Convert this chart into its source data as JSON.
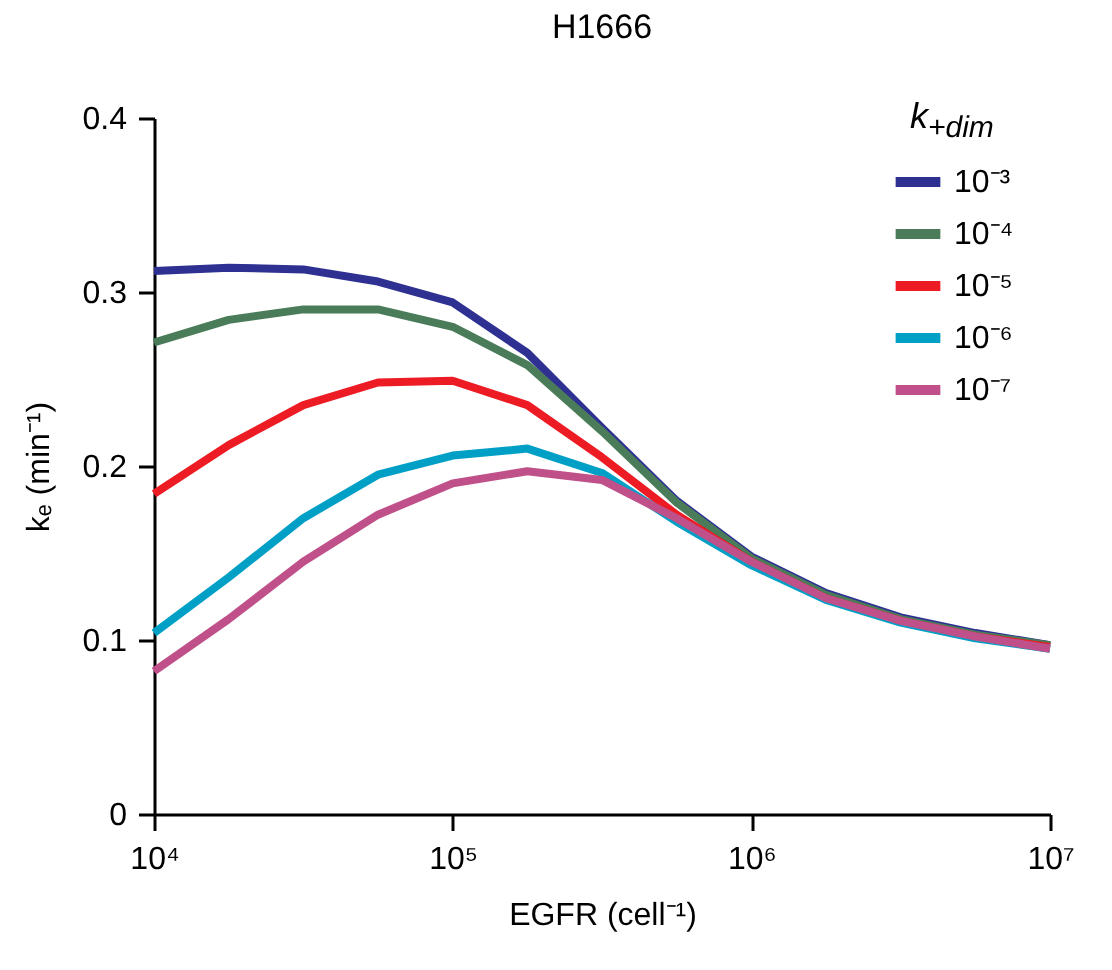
{
  "chart_data": {
    "type": "line",
    "title": "H1666",
    "xlabel": "EGFR (cell⁻¹)",
    "ylabel": "kₑ (min⁻¹)",
    "legend_title": "k$_{+dim}$",
    "x": [
      10000,
      17783,
      31623,
      56234,
      100000,
      177828,
      316228,
      562341,
      1000000,
      1778279,
      3162278,
      5623413,
      10000000
    ],
    "series": [
      {
        "name": "10⁻³",
        "color": "#2e3192",
        "values": [
          0.312,
          0.314,
          0.313,
          0.306,
          0.294,
          0.265,
          0.222,
          0.18,
          0.148,
          0.127,
          0.113,
          0.104,
          0.097
        ]
      },
      {
        "name": "10⁻⁴",
        "color": "#4a7c59",
        "values": [
          0.271,
          0.284,
          0.29,
          0.29,
          0.28,
          0.258,
          0.22,
          0.179,
          0.147,
          0.126,
          0.112,
          0.103,
          0.097
        ]
      },
      {
        "name": "10⁻⁵",
        "color": "#ed1c24",
        "values": [
          0.184,
          0.212,
          0.235,
          0.248,
          0.249,
          0.235,
          0.205,
          0.172,
          0.145,
          0.124,
          0.111,
          0.102,
          0.096
        ]
      },
      {
        "name": "10⁻⁶",
        "color": "#00a0c6",
        "values": [
          0.104,
          0.136,
          0.17,
          0.195,
          0.206,
          0.21,
          0.196,
          0.168,
          0.143,
          0.123,
          0.11,
          0.101,
          0.095
        ]
      },
      {
        "name": "10⁻⁷",
        "color": "#c0508a",
        "values": [
          0.082,
          0.112,
          0.145,
          0.172,
          0.19,
          0.197,
          0.192,
          0.17,
          0.145,
          0.124,
          0.111,
          0.102,
          0.095
        ]
      }
    ],
    "xlim": [
      10000,
      10000000
    ],
    "xticks": [
      {
        "value": 10000,
        "label": "10⁴"
      },
      {
        "value": 100000,
        "label": "10⁵"
      },
      {
        "value": 1000000,
        "label": "10⁶"
      },
      {
        "value": 10000000,
        "label": "10⁷"
      }
    ],
    "ylim": [
      0,
      0.4
    ],
    "yticks": [
      0,
      0.1,
      0.2,
      0.3,
      0.4
    ],
    "log": "x",
    "grid": false,
    "legend": "top right",
    "marker": "none",
    "line_style": "solid"
  }
}
